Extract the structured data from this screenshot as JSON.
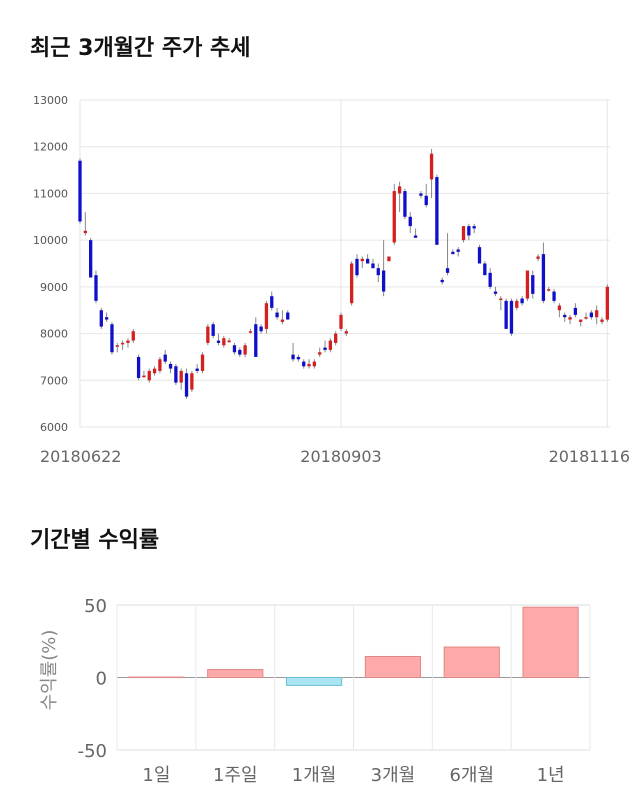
{
  "titles": {
    "price_trend": "최근 3개월간 주가 추세",
    "returns": "기간별 수익률"
  },
  "colors": {
    "up": "#d42020",
    "down": "#1010c8",
    "wick": "#888888",
    "grid": "#e6e6e6",
    "bar_pos": "#ffaaaa",
    "bar_pos_border": "#e08888",
    "bar_neg": "#a8e4f2",
    "bar_neg_border": "#70c0d8"
  },
  "chart_data": [
    {
      "type": "candlestick",
      "title": "최근 3개월간 주가 추세",
      "ylim": [
        6000,
        13000
      ],
      "y_ticks": [
        6000,
        7000,
        8000,
        9000,
        10000,
        11000,
        12000,
        13000
      ],
      "x_tick_labels": [
        {
          "label": "20180622",
          "index": 0
        },
        {
          "label": "20180903",
          "index": 49
        },
        {
          "label": "20181116",
          "index": 99
        }
      ],
      "grid": true,
      "candles": [
        [
          11700,
          11750,
          10350,
          10400
        ],
        [
          10150,
          10600,
          10100,
          10200
        ],
        [
          10000,
          10050,
          9200,
          9200
        ],
        [
          9250,
          9350,
          8650,
          8700
        ],
        [
          8500,
          8550,
          8100,
          8150
        ],
        [
          8350,
          8450,
          8250,
          8300
        ],
        [
          8200,
          8250,
          7550,
          7600
        ],
        [
          7750,
          7800,
          7600,
          7750
        ],
        [
          7800,
          7850,
          7650,
          7800
        ],
        [
          7800,
          7900,
          7700,
          7850
        ],
        [
          7850,
          8100,
          7800,
          8050
        ],
        [
          7500,
          7550,
          7000,
          7050
        ],
        [
          7100,
          7200,
          7050,
          7100
        ],
        [
          7000,
          7250,
          6950,
          7200
        ],
        [
          7150,
          7300,
          7100,
          7250
        ],
        [
          7200,
          7500,
          7150,
          7450
        ],
        [
          7550,
          7650,
          7350,
          7400
        ],
        [
          7350,
          7400,
          7150,
          7250
        ],
        [
          7300,
          7350,
          6900,
          6950
        ],
        [
          6950,
          7250,
          6800,
          7200
        ],
        [
          7150,
          7250,
          6600,
          6650
        ],
        [
          6800,
          7200,
          6750,
          7150
        ],
        [
          7250,
          7350,
          7150,
          7200
        ],
        [
          7200,
          7600,
          7150,
          7550
        ],
        [
          7800,
          8200,
          7750,
          8150
        ],
        [
          8200,
          8250,
          7900,
          7950
        ],
        [
          7850,
          8000,
          7750,
          7800
        ],
        [
          7750,
          7950,
          7700,
          7900
        ],
        [
          7850,
          7900,
          7800,
          7850
        ],
        [
          7750,
          7800,
          7550,
          7600
        ],
        [
          7650,
          7700,
          7500,
          7550
        ],
        [
          7550,
          7800,
          7500,
          7750
        ],
        [
          8050,
          8100,
          8000,
          8050
        ],
        [
          8200,
          8350,
          7500,
          7500
        ],
        [
          8150,
          8200,
          8000,
          8050
        ],
        [
          8100,
          8700,
          8000,
          8650
        ],
        [
          8800,
          8900,
          8500,
          8550
        ],
        [
          8450,
          8550,
          8300,
          8350
        ],
        [
          8250,
          8500,
          8200,
          8300
        ],
        [
          8450,
          8500,
          8300,
          8300
        ],
        [
          7550,
          7800,
          7400,
          7450
        ],
        [
          7500,
          7550,
          7400,
          7450
        ],
        [
          7400,
          7450,
          7250,
          7300
        ],
        [
          7300,
          7450,
          7250,
          7350
        ],
        [
          7300,
          7450,
          7250,
          7400
        ],
        [
          7550,
          7700,
          7500,
          7600
        ],
        [
          7700,
          7850,
          7600,
          7650
        ],
        [
          7650,
          7900,
          7600,
          7850
        ],
        [
          7800,
          8050,
          7750,
          8000
        ],
        [
          8100,
          8450,
          8050,
          8400
        ],
        [
          8000,
          8100,
          7950,
          8050
        ],
        [
          8650,
          9550,
          8600,
          9500
        ],
        [
          9600,
          9700,
          9200,
          9250
        ],
        [
          9550,
          9650,
          9400,
          9600
        ],
        [
          9600,
          9700,
          9500,
          9500
        ],
        [
          9500,
          9600,
          9400,
          9400
        ],
        [
          9400,
          9500,
          9100,
          9250
        ],
        [
          9350,
          10000,
          8800,
          8900
        ],
        [
          9550,
          9650,
          9550,
          9650
        ],
        [
          9950,
          11200,
          9900,
          11050
        ],
        [
          11000,
          11250,
          10600,
          11150
        ],
        [
          11050,
          11100,
          10450,
          10500
        ],
        [
          10500,
          10600,
          10150,
          10300
        ],
        [
          10100,
          10250,
          10050,
          10050
        ],
        [
          11000,
          11050,
          10900,
          10950
        ],
        [
          10950,
          11200,
          10700,
          10750
        ],
        [
          11300,
          11950,
          10900,
          11850
        ],
        [
          11350,
          11400,
          9900,
          9900
        ],
        [
          9150,
          9200,
          9050,
          9100
        ],
        [
          9400,
          10150,
          9250,
          9300
        ],
        [
          9750,
          9800,
          9700,
          9700
        ],
        [
          9800,
          9850,
          9650,
          9750
        ],
        [
          10000,
          10300,
          9950,
          10300
        ],
        [
          10300,
          10350,
          10000,
          10100
        ],
        [
          10300,
          10350,
          10150,
          10250
        ],
        [
          9850,
          9900,
          9500,
          9500
        ],
        [
          9500,
          9550,
          9250,
          9250
        ],
        [
          9300,
          9400,
          8950,
          9000
        ],
        [
          8900,
          9000,
          8800,
          8850
        ],
        [
          8750,
          8800,
          8500,
          8750
        ],
        [
          8700,
          8750,
          8100,
          8100
        ],
        [
          8700,
          8750,
          7950,
          8000
        ],
        [
          8550,
          8750,
          8500,
          8700
        ],
        [
          8750,
          8800,
          8600,
          8650
        ],
        [
          8750,
          9350,
          8700,
          9350
        ],
        [
          9250,
          9350,
          8750,
          8850
        ],
        [
          9600,
          9700,
          9550,
          9650
        ],
        [
          9700,
          9950,
          8650,
          8700
        ],
        [
          8950,
          9000,
          8900,
          8950
        ],
        [
          8900,
          8950,
          8650,
          8700
        ],
        [
          8500,
          8650,
          8350,
          8600
        ],
        [
          8400,
          8450,
          8250,
          8350
        ],
        [
          8300,
          8400,
          8200,
          8350
        ],
        [
          8550,
          8650,
          8350,
          8400
        ],
        [
          8250,
          8300,
          8150,
          8300
        ],
        [
          8350,
          8450,
          8300,
          8350
        ],
        [
          8450,
          8500,
          8300,
          8350
        ],
        [
          8350,
          8600,
          8200,
          8500
        ],
        [
          8250,
          8350,
          8200,
          8300
        ],
        [
          8300,
          9050,
          8250,
          9000
        ]
      ]
    },
    {
      "type": "bar",
      "title": "기간별 수익률",
      "ylabel": "수익률(%)",
      "ylim": [
        -50,
        50
      ],
      "y_ticks": [
        -50,
        0,
        50
      ],
      "categories": [
        "1일",
        "1주일",
        "1개월",
        "3개월",
        "6개월",
        "1년"
      ],
      "values": [
        0.3,
        5.5,
        -5.5,
        14.5,
        21.0,
        48.5
      ]
    }
  ]
}
